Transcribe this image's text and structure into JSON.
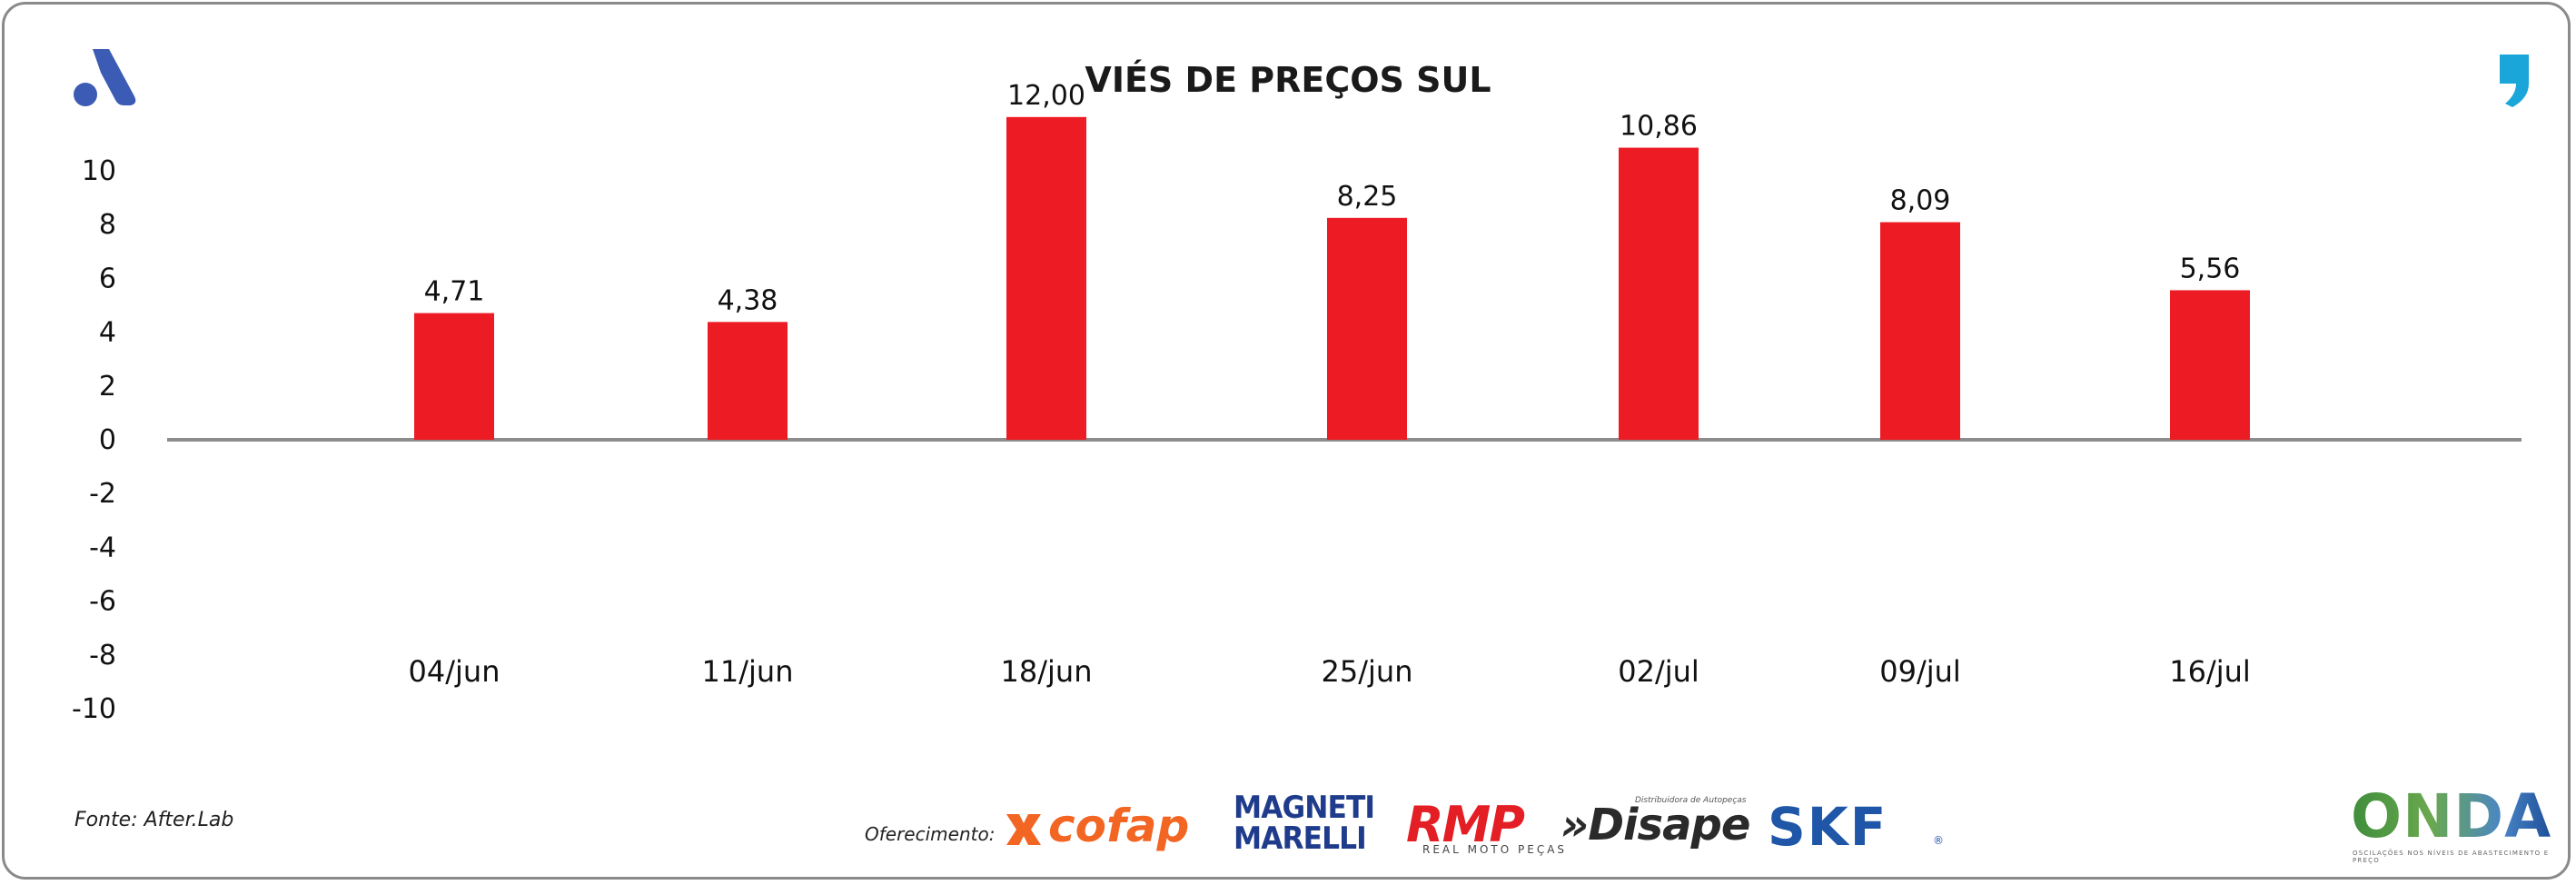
{
  "chart_data": {
    "type": "bar",
    "title": "VIÉS DE PREÇOS SUL",
    "categories": [
      "04/jun",
      "11/jun",
      "18/jun",
      "25/jun",
      "02/jul",
      "09/jul",
      "16/jul"
    ],
    "values": [
      4.71,
      4.38,
      12.0,
      8.25,
      10.86,
      8.09,
      5.56
    ],
    "value_labels": [
      "4,71",
      "4,38",
      "12,00",
      "8,25",
      "10,86",
      "8,09",
      "5,56"
    ],
    "ylim": [
      -10,
      10
    ],
    "yticks": [
      10,
      8,
      6,
      4,
      2,
      0,
      -2,
      -4,
      -6,
      -8,
      -10
    ],
    "bar_color": "#ed1c24",
    "grid": false,
    "legend": "none"
  },
  "source": "Fonte: After.Lab",
  "sponsors": {
    "label": "Oferecimento:",
    "cofap": "cofap",
    "magneti_top": "MAGNETI",
    "magneti_bottom": "MARELLI",
    "rmp": "RMP",
    "rmp_sub": "REAL MOTO PEÇAS",
    "disape": "»Disape",
    "disape_sub": "Distribuidora de Autopeças",
    "skf": "SKF",
    "skf_mark": "®"
  },
  "brand": {
    "onda": "ONDA",
    "onda_sub": "OSCILAÇÕES NOS NÍVEIS DE ABASTECIMENTO E PREÇO",
    "logo_left": "a-logo-icon",
    "logo_right": "comma-logo-icon",
    "accent_blue": "#3c5bb4",
    "accent_cyan": "#1aa6d9"
  }
}
